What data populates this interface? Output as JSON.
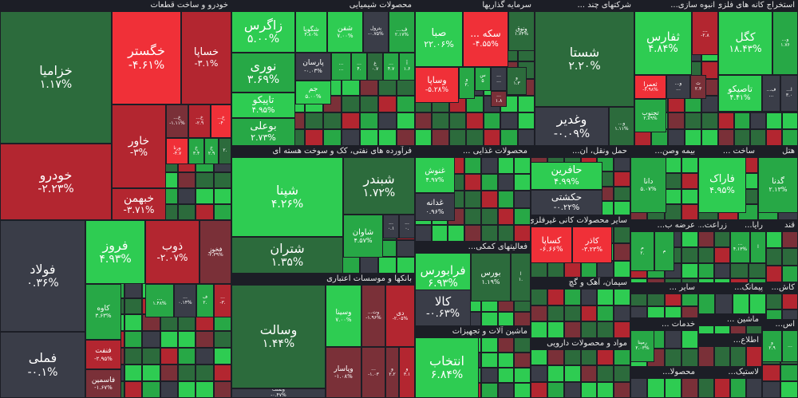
{
  "chart_data": {
    "type": "treemap",
    "colors": {
      "strong_pos": "#2ecc52",
      "pos": "#27a846",
      "weak_pos": "#2c6b3c",
      "neutral": "#3a3d48",
      "weak_neg": "#7a3038",
      "neg": "#b32630",
      "strong_neg": "#f03038",
      "background": "#1c1e26"
    },
    "sectors": [
      {
        "name": "خودرو و ساخت قطعات",
        "tiles": [
          {
            "symbol": "خزامیا",
            "change": "۱.۱۷%",
            "tone": "weak_pos"
          },
          {
            "symbol": "خودرو",
            "change": "-۲.۲۳%",
            "tone": "neg"
          },
          {
            "symbol": "خگستر",
            "change": "-۴.۶۱%",
            "tone": "strong_neg"
          },
          {
            "symbol": "خساپا",
            "change": "-۳.۱%",
            "tone": "neg"
          },
          {
            "symbol": "خاور",
            "change": "-۳%",
            "tone": "neg"
          },
          {
            "symbol": "خبهمن",
            "change": "-۳.۷۱%",
            "tone": "neg"
          },
          {
            "symbol": "خ...",
            "change": "-۱.۱۱%",
            "tone": "weak_neg"
          },
          {
            "symbol": "خ...",
            "change": "-۲.۹",
            "tone": "neg"
          },
          {
            "symbol": "خ...",
            "change": "-۴",
            "tone": "strong_neg"
          },
          {
            "symbol": "ورنا",
            "change": "-۴.۷",
            "tone": "strong_neg"
          },
          {
            "symbol": "خ",
            "change": "۳.۴",
            "tone": "pos"
          },
          {
            "symbol": "خ",
            "change": "۲.۹",
            "tone": "pos"
          },
          {
            "symbol": "",
            "change": "۲.",
            "tone": "weak_pos"
          }
        ]
      },
      {
        "name": "محصولات شیمیایی",
        "tiles": [
          {
            "symbol": "زاگرس",
            "change": "۵.۰۰%",
            "tone": "strong_pos"
          },
          {
            "symbol": "شگویا",
            "change": "۴.۸۰%",
            "tone": "strong_pos"
          },
          {
            "symbol": "شفن",
            "change": "۷.۰۰%",
            "tone": "strong_pos"
          },
          {
            "symbol": "پترول",
            "change": "-۰.۷۵%",
            "tone": "neutral"
          },
          {
            "symbol": "ف...",
            "change": "۲.۱۷%",
            "tone": "pos"
          },
          {
            "symbol": "نوری",
            "change": "۳.۶۹%",
            "tone": "pos"
          },
          {
            "symbol": "پارسان",
            "change": "-۰.۰۳%",
            "tone": "neutral"
          },
          {
            "symbol": "...",
            "change": "...",
            "tone": "pos"
          },
          {
            "symbol": "...",
            "change": "۴.",
            "tone": "pos"
          },
          {
            "symbol": "غ",
            "change": "۰.۷",
            "tone": "weak_pos"
          },
          {
            "symbol": "...",
            "change": "۴.۷",
            "tone": "pos"
          },
          {
            "symbol": "آ",
            "change": "۱.۶",
            "tone": "pos"
          },
          {
            "symbol": "جم",
            "change": "۵.۰۰%",
            "tone": "strong_pos"
          },
          {
            "symbol": "تاپیکو",
            "change": "۴.۹۵%",
            "tone": "strong_pos"
          },
          {
            "symbol": "بوعلی",
            "change": "۲.۷۳%",
            "tone": "pos"
          }
        ]
      },
      {
        "name": "سرمایه گذاریها",
        "tiles": [
          {
            "symbol": "صبا",
            "change": "۲۲.۰۶%",
            "tone": "strong_pos"
          },
          {
            "symbol": "سکه ...",
            "change": "-۴.۵۵%",
            "tone": "strong_neg"
          },
          {
            "symbol": "وتوق",
            "change": "۱.۷۴%",
            "tone": "weak_pos"
          },
          {
            "symbol": "وساپا",
            "change": "-۵.۲۸%",
            "tone": "strong_neg"
          },
          {
            "symbol": "و",
            "change": "۳.",
            "tone": "pos"
          },
          {
            "symbol": "س",
            "change": "۵",
            "tone": "pos"
          },
          {
            "symbol": "...",
            "change": "...",
            "tone": "neutral"
          },
          {
            "symbol": "و",
            "change": "۱.۳",
            "tone": "weak_pos"
          },
          {
            "symbol": "...",
            "change": "۱.۸",
            "tone": "weak_neg"
          }
        ]
      },
      {
        "name": "شرکتهای چند ...",
        "tiles": [
          {
            "symbol": "شستا",
            "change": "۲.۲۰%",
            "tone": "weak_pos"
          },
          {
            "symbol": "وغدیر",
            "change": "-۰.۰۹%",
            "tone": "neutral"
          },
          {
            "symbol": "و...",
            "change": "۱.۱۱%",
            "tone": "weak_pos"
          }
        ]
      },
      {
        "name": "انبوه سازی...",
        "tiles": [
          {
            "symbol": "ثفارس",
            "change": "۴.۸۴%",
            "tone": "strong_pos"
          },
          {
            "symbol": "ثعمرا",
            "change": "-۶.۹۸%",
            "tone": "strong_neg"
          },
          {
            "symbol": "تجنوب",
            "change": "۲.۸۹%",
            "tone": "pos"
          },
          {
            "symbol": "...",
            "change": "-۲.۸",
            "tone": "neg"
          },
          {
            "symbol": "و...",
            "change": "...",
            "tone": "neutral"
          },
          {
            "symbol": "ث",
            "change": "۲.۳",
            "tone": "weak_neg"
          }
        ]
      },
      {
        "name": "استخراج کانه های فلزی",
        "tiles": [
          {
            "symbol": "کگل",
            "change": "۱۸.۴۳%",
            "tone": "strong_pos"
          },
          {
            "symbol": "و...",
            "change": "۱.۷۶",
            "tone": "pos"
          },
          {
            "symbol": "تاصیکو",
            "change": "۴.۴۱%",
            "tone": "strong_pos"
          },
          {
            "symbol": "ف...",
            "change": "...",
            "tone": "neutral"
          },
          {
            "symbol": "ا...",
            "change": "۳.۰",
            "tone": "neutral"
          }
        ]
      },
      {
        "name": "فرآورده های نفتی، کک و سوخت هسته ای",
        "tiles": [
          {
            "symbol": "شپنا",
            "change": "۴.۲۶%",
            "tone": "strong_pos"
          },
          {
            "symbol": "شبندر",
            "change": "۱.۷۲%",
            "tone": "weak_pos"
          },
          {
            "symbol": "شاوان",
            "change": "۴.۵۷%",
            "tone": "pos"
          },
          {
            "symbol": "شتران",
            "change": "۱.۳۵%",
            "tone": "weak_pos"
          },
          {
            "symbol": "...",
            "change": "۰.۱",
            "tone": "neutral"
          },
          {
            "symbol": "...",
            "change": "۰.",
            "tone": "neutral"
          }
        ]
      },
      {
        "name": "فلزات اساسی",
        "tiles": [
          {
            "symbol": "فولاد",
            "change": "۰.۳۶%",
            "tone": "neutral"
          },
          {
            "symbol": "فملی",
            "change": "-۰.۱%",
            "tone": "neutral"
          },
          {
            "symbol": "فروز",
            "change": "۴.۹۳%",
            "tone": "strong_pos"
          },
          {
            "symbol": "ذوب",
            "change": "-۲.۰۷%",
            "tone": "neg"
          },
          {
            "symbol": "فخوز",
            "change": "-۲.۳۹%",
            "tone": "weak_neg"
          },
          {
            "symbol": "کاوه",
            "change": "۳.۶۳%",
            "tone": "pos"
          },
          {
            "symbol": "...",
            "change": "۱.۴۸%",
            "tone": "pos"
          },
          {
            "symbol": "...",
            "change": "۰.۱۴%",
            "tone": "neutral"
          },
          {
            "symbol": "ف",
            "change": "۲.",
            "tone": "pos"
          },
          {
            "symbol": "...",
            "change": "-۳.",
            "tone": "neg"
          },
          {
            "symbol": "فنفت",
            "change": "-۲.۹۵%",
            "tone": "neg"
          },
          {
            "symbol": "فاسمین",
            "change": "-۱.۶۷%",
            "tone": "weak_neg"
          }
        ]
      },
      {
        "name": "بانکها و موسسات اعتباری",
        "tiles": [
          {
            "symbol": "وسالت",
            "change": "۱.۴۴%",
            "tone": "weak_pos"
          },
          {
            "symbol": "وبملت",
            "change": "-۰.۴۷%",
            "tone": "neutral"
          },
          {
            "symbol": "وسینا",
            "change": "۷.۰۰%",
            "tone": "strong_pos"
          },
          {
            "symbol": "وت...",
            "change": "-۱.۹۶%",
            "tone": "weak_neg"
          },
          {
            "symbol": "دی",
            "change": "-۲.۰۵%",
            "tone": "neg"
          },
          {
            "symbol": "وپاسار",
            "change": "-۱.۰۸%",
            "tone": "weak_neg"
          },
          {
            "symbol": "...",
            "change": "-۱.۰۳",
            "tone": "weak_neg"
          },
          {
            "symbol": "و",
            "change": "۲.۲",
            "tone": "weak_neg"
          },
          {
            "symbol": "و",
            "change": "۳.۱",
            "tone": "neg"
          }
        ]
      },
      {
        "name": "محصولات غذایی ...",
        "tiles": [
          {
            "symbol": "غنوش",
            "change": "۴.۹۷%",
            "tone": "strong_pos"
          },
          {
            "symbol": "غدانه",
            "change": "۰.۹۶%",
            "tone": "neutral"
          }
        ]
      },
      {
        "name": "فعالیتهای کمکی...",
        "tiles": [
          {
            "symbol": "فرابورس",
            "change": "۶.۹۳%",
            "tone": "strong_pos"
          },
          {
            "symbol": "بورس",
            "change": "۱.۱۹%",
            "tone": "weak_pos"
          },
          {
            "symbol": "ا",
            "change": "۱.",
            "tone": "weak_pos"
          },
          {
            "symbol": "کالا",
            "change": "-۰.۶۳%",
            "tone": "neutral"
          }
        ]
      },
      {
        "name": "ماشین آلات و تجهیزات",
        "tiles": [
          {
            "symbol": "انتخاب",
            "change": "۶.۸۴%",
            "tone": "strong_pos"
          }
        ]
      },
      {
        "name": "حمل ونقل، ان...",
        "tiles": [
          {
            "symbol": "حافرین",
            "change": "۴.۹۹%",
            "tone": "strong_pos"
          },
          {
            "symbol": "حکشتی",
            "change": "-۰.۲۲%",
            "tone": "neutral"
          }
        ]
      },
      {
        "name": "سایر محصولات کانی غیرفلزی",
        "tiles": [
          {
            "symbol": "کساپا",
            "change": "-۶.۶۶%",
            "tone": "strong_neg"
          },
          {
            "symbol": "کاذر",
            "change": "-۳.۲۳%",
            "tone": "strong_neg"
          }
        ]
      },
      {
        "name": "سیمان، آهک و گچ",
        "tiles": []
      },
      {
        "name": "مواد و محصولات دارویی",
        "tiles": []
      },
      {
        "name": "بیمه وصن...",
        "tiles": [
          {
            "symbol": "دانا",
            "change": "۵.۰۷%",
            "tone": "pos"
          }
        ]
      },
      {
        "name": "ساخت ...",
        "tiles": [
          {
            "symbol": "فاراک",
            "change": "۴.۹۵%",
            "tone": "strong_pos"
          }
        ]
      },
      {
        "name": "هتل",
        "tiles": [
          {
            "symbol": "گدنا",
            "change": "۲.۱۳%",
            "tone": "pos"
          }
        ]
      },
      {
        "name": "عرضه ب...",
        "tiles": [
          {
            "symbol": "م",
            "change": "۲.",
            "tone": "pos"
          },
          {
            "symbol": "م",
            "change": "",
            "tone": "pos"
          }
        ]
      },
      {
        "name": "زراعت...",
        "tiles": []
      },
      {
        "name": "رایا...",
        "tiles": [
          {
            "symbol": "...",
            "change": "۴.۱۳%",
            "tone": "pos"
          },
          {
            "symbol": "ا",
            "change": "",
            "tone": "pos"
          }
        ]
      },
      {
        "name": "کاش...",
        "tiles": []
      },
      {
        "name": "قند",
        "tiles": []
      },
      {
        "name": "پیمانک...",
        "tiles": []
      },
      {
        "name": "سایر ...",
        "tiles": []
      },
      {
        "name": "ماشین ...",
        "tiles": []
      },
      {
        "name": "خدمات ...",
        "tiles": [
          {
            "symbol": "رمپنا",
            "change": "۲.۰۳%",
            "tone": "pos"
          }
        ]
      },
      {
        "name": "اطلاع...",
        "tiles": []
      },
      {
        "name": "محصولا...",
        "tiles": []
      },
      {
        "name": "لاستیک...",
        "tiles": []
      },
      {
        "name": "اس...",
        "tiles": [
          {
            "symbol": "و",
            "change": "۲.۹",
            "tone": "pos"
          },
          {
            "symbol": "...",
            "change": "",
            "tone": "pos"
          }
        ]
      }
    ]
  }
}
